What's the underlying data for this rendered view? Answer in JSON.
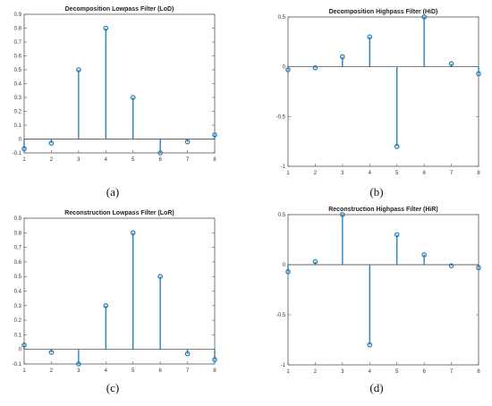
{
  "colors": {
    "stem": "#1f77b4",
    "axis": "#555555",
    "zero_line": "#333333"
  },
  "chart_data": [
    {
      "type": "stem",
      "title": "Decomposition Lowpass Filter (LoD)",
      "caption": "(a)",
      "x": [
        1,
        2,
        3,
        4,
        5,
        6,
        7,
        8
      ],
      "values": [
        -0.07,
        -0.03,
        0.5,
        0.8,
        0.3,
        -0.1,
        -0.02,
        0.03
      ],
      "xlim": [
        1,
        8
      ],
      "ylim": [
        -0.1,
        0.9
      ],
      "xticks": [
        "1",
        "2",
        "3",
        "4",
        "5",
        "6",
        "7",
        "8"
      ],
      "yticks": [
        "-0.1",
        "0",
        "0.1",
        "0.2",
        "0.3",
        "0.4",
        "0.5",
        "0.6",
        "0.7",
        "0.8",
        "0.9"
      ],
      "ytick_values": [
        -0.1,
        0,
        0.1,
        0.2,
        0.3,
        0.4,
        0.5,
        0.6,
        0.7,
        0.8,
        0.9
      ]
    },
    {
      "type": "stem",
      "title": "Decomposition Highpass Filter (HiD)",
      "caption": "(b)",
      "x": [
        1,
        2,
        3,
        4,
        5,
        6,
        7,
        8
      ],
      "values": [
        -0.03,
        -0.01,
        0.1,
        0.3,
        -0.8,
        0.5,
        0.03,
        -0.07
      ],
      "xlim": [
        1,
        8
      ],
      "ylim": [
        -1,
        0.5
      ],
      "xticks": [
        "1",
        "2",
        "3",
        "4",
        "5",
        "6",
        "7",
        "8"
      ],
      "yticks": [
        "-1",
        "-0.5",
        "0",
        "0.5"
      ],
      "ytick_values": [
        -1,
        -0.5,
        0,
        0.5
      ]
    },
    {
      "type": "stem",
      "title": "Reconstruction Lowpass Filter (LoR)",
      "caption": "(c)",
      "x": [
        1,
        2,
        3,
        4,
        5,
        6,
        7,
        8
      ],
      "values": [
        0.03,
        -0.02,
        -0.1,
        0.3,
        0.8,
        0.5,
        -0.03,
        -0.07
      ],
      "xlim": [
        1,
        8
      ],
      "ylim": [
        -0.1,
        0.9
      ],
      "xticks": [
        "1",
        "2",
        "3",
        "4",
        "5",
        "6",
        "7",
        "8"
      ],
      "yticks": [
        "-0.1",
        "0",
        "0.1",
        "0.2",
        "0.3",
        "0.4",
        "0.5",
        "0.6",
        "0.7",
        "0.8",
        "0.9"
      ],
      "ytick_values": [
        -0.1,
        0,
        0.1,
        0.2,
        0.3,
        0.4,
        0.5,
        0.6,
        0.7,
        0.8,
        0.9
      ]
    },
    {
      "type": "stem",
      "title": "Reconstruction Highpass Filter (HiR)",
      "caption": "(d)",
      "x": [
        1,
        2,
        3,
        4,
        5,
        6,
        7,
        8
      ],
      "values": [
        -0.07,
        0.03,
        0.5,
        -0.8,
        0.3,
        0.1,
        -0.01,
        -0.03
      ],
      "xlim": [
        1,
        8
      ],
      "ylim": [
        -1,
        0.5
      ],
      "xticks": [
        "1",
        "2",
        "3",
        "4",
        "5",
        "6",
        "7",
        "8"
      ],
      "yticks": [
        "-1",
        "-0.5",
        "0",
        "0.5"
      ],
      "ytick_values": [
        -1,
        -0.5,
        0,
        0.5
      ]
    }
  ]
}
